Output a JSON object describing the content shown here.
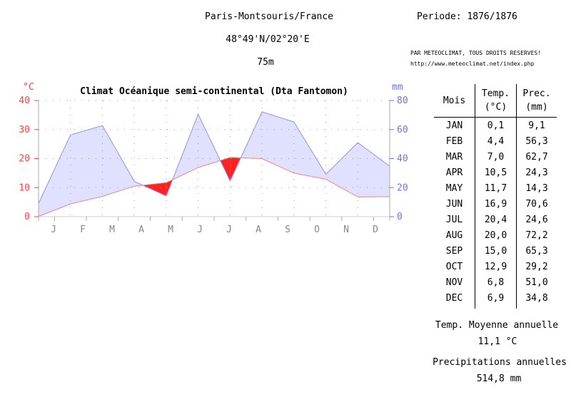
{
  "header": {
    "station": "Paris-Montsouris/France",
    "coords": "48°49'N/02°20'E",
    "altitude": "75m",
    "period": "Periode: 1876/1876",
    "copyright": "PAR METEOCLIMAT, TOUS DROITS RESERVES!",
    "url": "http://www.meteoclimat.net/index.php"
  },
  "table": {
    "head_month": "Mois",
    "head_temp_1": "Temp.",
    "head_temp_2": "(°C)",
    "head_prec_1": "Prec.",
    "head_prec_2": "(mm)",
    "rows": [
      {
        "month": "JAN",
        "temp": "0,1",
        "prec": "9,1"
      },
      {
        "month": "FEB",
        "temp": "4,4",
        "prec": "56,3"
      },
      {
        "month": "MAR",
        "temp": "7,0",
        "prec": "62,7"
      },
      {
        "month": "APR",
        "temp": "10,5",
        "prec": "24,3"
      },
      {
        "month": "MAY",
        "temp": "11,7",
        "prec": "14,3"
      },
      {
        "month": "JUN",
        "temp": "16,9",
        "prec": "70,6"
      },
      {
        "month": "JUL",
        "temp": "20,4",
        "prec": "24,6"
      },
      {
        "month": "AUG",
        "temp": "20,0",
        "prec": "72,2"
      },
      {
        "month": "SEP",
        "temp": "15,0",
        "prec": "65,3"
      },
      {
        "month": "OCT",
        "temp": "12,9",
        "prec": "29,2"
      },
      {
        "month": "NOV",
        "temp": "6,8",
        "prec": "51,0"
      },
      {
        "month": "DEC",
        "temp": "6,9",
        "prec": "34,8"
      }
    ]
  },
  "summary": {
    "temp_label": "Temp. Moyenne annuelle",
    "temp_value": "11,1 °C",
    "prec_label": "Precipitations annuelles",
    "prec_value": "514,8 mm"
  },
  "chart_data": {
    "type": "line",
    "title": "Climat Océanique semi-continental (Dta Fantomon)",
    "categories": [
      "J",
      "F",
      "M",
      "A",
      "M",
      "J",
      "J",
      "A",
      "S",
      "O",
      "N",
      "D"
    ],
    "temp_unit": "°C",
    "prec_unit": "mm",
    "temp_ylim": [
      0,
      40
    ],
    "prec_ylim": [
      0,
      80
    ],
    "temp_ticks": [
      0,
      10,
      20,
      30,
      40
    ],
    "prec_ticks": [
      0,
      20,
      40,
      60,
      80
    ],
    "grid": true,
    "series": [
      {
        "values": [
          0.1,
          4.4,
          7.0,
          10.5,
          11.7,
          16.9,
          20.4,
          20.0,
          15.0,
          12.9,
          6.8,
          6.9
        ],
        "axis": "left"
      },
      {
        "values": [
          9.1,
          56.3,
          62.7,
          24.3,
          14.3,
          70.6,
          24.6,
          72.2,
          65.3,
          29.2,
          51.0,
          34.8
        ],
        "axis": "right"
      }
    ],
    "colors": {
      "temp_axis": "#ff4040",
      "prec_axis": "#7070f0",
      "temp_line": "#ff8080",
      "prec_line": "#9090e0",
      "humid_fill": "#e0e0ff",
      "dry_fill": "#ff2020",
      "grid": "#999999",
      "month_labels": "#888888"
    }
  }
}
